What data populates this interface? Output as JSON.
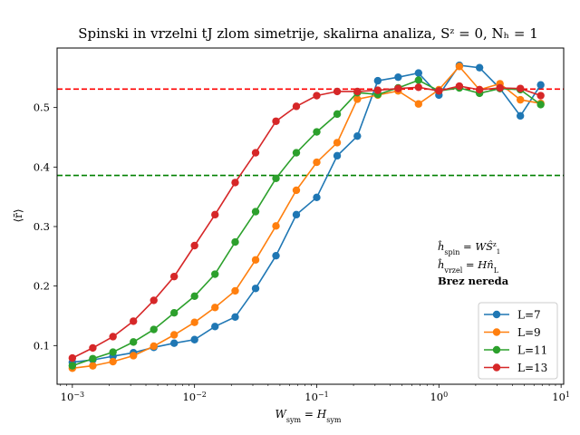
{
  "chart_data": {
    "type": "line",
    "title": "Spinski in vrzelni tJ zlom simetrije, skalirna analiza, Sᶻ = 0, Nₕ = 1",
    "xlabel": "W_sym = H_sym",
    "ylabel": "⟨r̄⟩",
    "xscale": "log",
    "xlim": [
      0.00075,
      10.5
    ],
    "ylim": [
      0.035,
      0.6
    ],
    "xticks": [
      {
        "value": 0.001,
        "base": "10",
        "exp": "−3"
      },
      {
        "value": 0.01,
        "base": "10",
        "exp": "−2"
      },
      {
        "value": 0.1,
        "base": "10",
        "exp": "−1"
      },
      {
        "value": 1,
        "base": "10",
        "exp": "0"
      },
      {
        "value": 10,
        "base": "10",
        "exp": "1"
      }
    ],
    "yticks": [
      {
        "value": 0.1,
        "label": "0.1"
      },
      {
        "value": 0.2,
        "label": "0.2"
      },
      {
        "value": 0.3,
        "label": "0.3"
      },
      {
        "value": 0.4,
        "label": "0.4"
      },
      {
        "value": 0.5,
        "label": "0.5"
      }
    ],
    "x": [
      0.001,
      0.00147,
      0.00215,
      0.00316,
      0.00464,
      0.00681,
      0.01,
      0.0147,
      0.0215,
      0.0316,
      0.0464,
      0.0681,
      0.1,
      0.147,
      0.215,
      0.316,
      0.464,
      0.681,
      1.0,
      1.47,
      2.15,
      3.16,
      4.64,
      6.81
    ],
    "series": [
      {
        "name": "L=7",
        "color": "#1f77b4",
        "values": [
          0.072,
          0.076,
          0.082,
          0.088,
          0.097,
          0.104,
          0.11,
          0.132,
          0.148,
          0.196,
          0.251,
          0.32,
          0.349,
          0.419,
          0.452,
          0.545,
          0.551,
          0.558,
          0.521,
          0.571,
          0.567,
          0.532,
          0.486,
          0.538
        ]
      },
      {
        "name": "L=9",
        "color": "#ff7f0e",
        "values": [
          0.062,
          0.066,
          0.073,
          0.083,
          0.099,
          0.118,
          0.139,
          0.164,
          0.192,
          0.244,
          0.301,
          0.361,
          0.408,
          0.441,
          0.514,
          0.521,
          0.528,
          0.506,
          0.53,
          0.569,
          0.53,
          0.54,
          0.513,
          0.507
        ]
      },
      {
        "name": "L=11",
        "color": "#2ca02c",
        "values": [
          0.066,
          0.078,
          0.089,
          0.106,
          0.127,
          0.155,
          0.183,
          0.22,
          0.274,
          0.325,
          0.381,
          0.424,
          0.459,
          0.489,
          0.525,
          0.522,
          0.533,
          0.546,
          0.528,
          0.533,
          0.524,
          0.532,
          0.53,
          0.505
        ]
      },
      {
        "name": "L=13",
        "color": "#d62728",
        "values": [
          0.079,
          0.096,
          0.115,
          0.141,
          0.176,
          0.216,
          0.268,
          0.32,
          0.374,
          0.424,
          0.477,
          0.502,
          0.52,
          0.527,
          0.527,
          0.529,
          0.532,
          0.534,
          0.528,
          0.536,
          0.53,
          0.533,
          0.532,
          0.52
        ]
      }
    ],
    "reference_lines": [
      {
        "y": 0.531,
        "color": "#ff0000",
        "style": "dashed"
      },
      {
        "y": 0.386,
        "color": "#008000",
        "style": "dashed"
      }
    ],
    "annotations": [
      "ĥ_spin = WŜᶻ₁",
      "ĥ_vrzel = Hn̂_L",
      "Brez nereda"
    ],
    "legend_position": "lower-right",
    "grid": false
  }
}
